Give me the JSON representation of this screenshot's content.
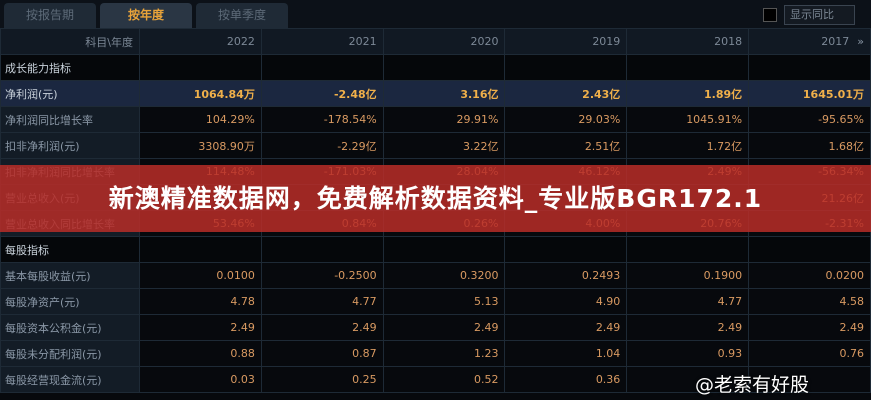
{
  "tabs": [
    "按报告期",
    "按年度",
    "按单季度"
  ],
  "active_tab": "按年度",
  "show_yoy_label": "显示同比",
  "header": {
    "label": "科目\\年度",
    "years": [
      "2022",
      "2021",
      "2020",
      "2019",
      "2018",
      "2017"
    ],
    "more_icon": "»"
  },
  "rows": [
    {
      "label": "成长能力指标",
      "type": "section",
      "values": [
        "",
        "",
        "",
        "",
        "",
        ""
      ]
    },
    {
      "label": "净利润(元)",
      "type": "highlight",
      "values": [
        "1064.84万",
        "-2.48亿",
        "3.16亿",
        "2.43亿",
        "1.89亿",
        "1645.01万"
      ]
    },
    {
      "label": "净利润同比增长率",
      "values": [
        "104.29%",
        "-178.54%",
        "29.91%",
        "29.03%",
        "1045.91%",
        "-95.65%"
      ]
    },
    {
      "label": "扣非净利润(元)",
      "values": [
        "3308.90万",
        "-2.29亿",
        "3.22亿",
        "2.51亿",
        "1.72亿",
        "1.68亿"
      ]
    },
    {
      "label": "扣非净利润同比增长率",
      "values": [
        "114.48%",
        "-171.03%",
        "28.04%",
        "46.12%",
        "2.49%",
        "-56.34%"
      ]
    },
    {
      "label": "营业总收入(元)",
      "values": [
        "",
        "",
        "",
        "",
        "",
        "21.26亿"
      ]
    },
    {
      "label": "营业总收入同比增长率",
      "values": [
        "53.46%",
        "0.84%",
        "0.26%",
        "4.00%",
        "20.76%",
        "-2.31%"
      ]
    },
    {
      "label": "每股指标",
      "type": "section",
      "values": [
        "",
        "",
        "",
        "",
        "",
        ""
      ]
    },
    {
      "label": "基本每股收益(元)",
      "values": [
        "0.0100",
        "-0.2500",
        "0.3200",
        "0.2493",
        "0.1900",
        "0.0200"
      ]
    },
    {
      "label": "每股净资产(元)",
      "values": [
        "4.78",
        "4.77",
        "5.13",
        "4.90",
        "4.77",
        "4.58"
      ]
    },
    {
      "label": "每股资本公积金(元)",
      "values": [
        "2.49",
        "2.49",
        "2.49",
        "2.49",
        "2.49",
        "2.49"
      ]
    },
    {
      "label": "每股未分配利润(元)",
      "values": [
        "0.88",
        "0.87",
        "1.23",
        "1.04",
        "0.93",
        "0.76"
      ]
    },
    {
      "label": "每股经营现金流(元)",
      "values": [
        "0.03",
        "0.25",
        "0.52",
        "0.36",
        "",
        ""
      ]
    }
  ],
  "banner": "新澳精准数据网，免费解析数据资料_专业版BGR172.1",
  "watermark": "@老索有好股"
}
